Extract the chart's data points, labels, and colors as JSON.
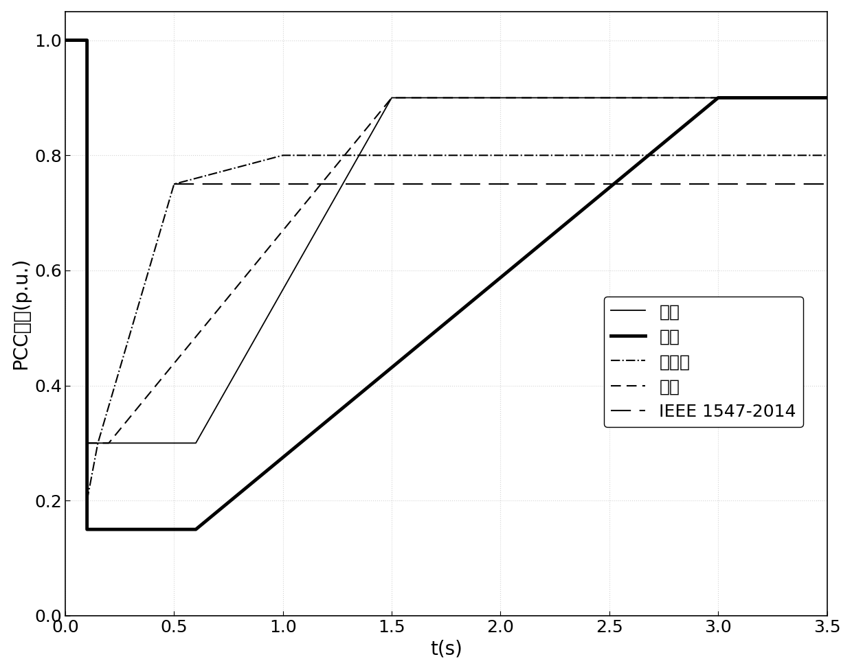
{
  "germany": {
    "x": [
      0,
      0.1,
      0.1,
      0.6,
      1.5,
      3.5
    ],
    "y": [
      1.0,
      1.0,
      0.3,
      0.3,
      0.9,
      0.9
    ],
    "label": "德国",
    "linewidth": 1.3,
    "linestyle": "solid"
  },
  "usa": {
    "x": [
      0,
      0.1,
      0.1,
      0.6,
      3.0,
      3.5
    ],
    "y": [
      1.0,
      1.0,
      0.15,
      0.15,
      0.9,
      0.9
    ],
    "label": "美国",
    "linewidth": 3.5,
    "linestyle": "solid"
  },
  "spain": {
    "x": [
      0.1,
      0.15,
      0.5,
      0.5,
      1.0,
      3.5
    ],
    "y": [
      0.2,
      0.3,
      0.75,
      0.75,
      0.8,
      0.8
    ],
    "label": "西班牙",
    "linewidth": 1.5,
    "linestyle": "dashdot"
  },
  "denmark": {
    "x": [
      0.1,
      0.2,
      1.5,
      3.5
    ],
    "y": [
      0.3,
      0.3,
      0.9,
      0.9
    ],
    "label": "丹麦",
    "linewidth": 1.5,
    "dashes": [
      7,
      4
    ]
  },
  "ieee": {
    "x": [
      0.5,
      3.5
    ],
    "y": [
      0.75,
      0.75
    ],
    "label": "IEEE 1547-2014",
    "linewidth": 1.5,
    "dashes": [
      14,
      6
    ]
  },
  "xlim": [
    0,
    3.5
  ],
  "ylim": [
    0,
    1.05
  ],
  "xlabel": "t(s)",
  "ylabel": "PCC电压(p.u.)",
  "xticks": [
    0,
    0.5,
    1,
    1.5,
    2,
    2.5,
    3,
    3.5
  ],
  "yticks": [
    0,
    0.2,
    0.4,
    0.6,
    0.8,
    1
  ],
  "background_color": "#ffffff",
  "line_color": "#000000",
  "font_size": 20,
  "tick_fontsize": 18,
  "legend_fontsize": 18,
  "grid_color": "#aaaaaa",
  "grid_alpha": 0.5,
  "grid_linestyle": ":"
}
